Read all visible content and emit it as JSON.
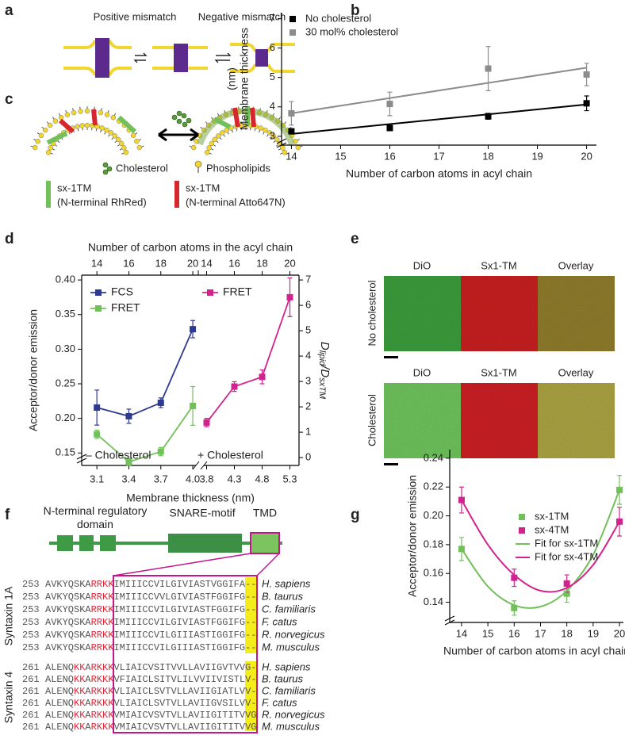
{
  "panel_letters": [
    "a",
    "b",
    "c",
    "d",
    "e",
    "f",
    "g"
  ],
  "panel_a": {
    "labels": [
      "Positive mismatch",
      "Negative mismatch"
    ]
  },
  "panel_c": {
    "legend": [
      "Cholesterol",
      "Phospholipids"
    ],
    "probes": [
      {
        "name": "sx-1TM",
        "detail": "(N-terminal RhRed)",
        "color": "#72c05a"
      },
      {
        "name": "sx-1TM",
        "detail": "(N-terminal Atto647N)",
        "color": "#d8262f"
      }
    ]
  },
  "panel_e": {
    "columns": [
      "DiO",
      "Sx1-TM",
      "Overlay"
    ],
    "column_colors": [
      "#3aa03a",
      "#d8262f",
      "#222222"
    ],
    "rows": [
      "No cholesterol",
      "Cholesterol"
    ]
  },
  "panel_f": {
    "domains": [
      "N-terminal regulatory domain",
      "SNARE-motif",
      "TMD"
    ],
    "groups": [
      {
        "name": "Syntaxin 1A",
        "rows": [
          {
            "start": 253,
            "segments": [
              {
                "text": "AVKYQSKA",
                "red": false
              },
              {
                "text": "RRKK",
                "red": true
              },
              {
                "text": "IMIIICCVILGIVIASTVGGIFA--",
                "red": false
              }
            ],
            "species": "H. sapiens"
          },
          {
            "start": 253,
            "segments": [
              {
                "text": "AVKYQSKA",
                "red": false
              },
              {
                "text": "RRKK",
                "red": true
              },
              {
                "text": "IMIIICCVVLGIVIASTFGGIFG--",
                "red": false
              }
            ],
            "species": "B. taurus"
          },
          {
            "start": 253,
            "segments": [
              {
                "text": "AVKYQSKA",
                "red": false
              },
              {
                "text": "RRKK",
                "red": true
              },
              {
                "text": "IMIIICCVILGIVIASTFGGIFG--",
                "red": false
              }
            ],
            "species": "C. familiaris"
          },
          {
            "start": 253,
            "segments": [
              {
                "text": "AVKYQSKA",
                "red": false
              },
              {
                "text": "RRKK",
                "red": true
              },
              {
                "text": "IMIIICCVILGIVIASTFGGIFG--",
                "red": false
              }
            ],
            "species": "F. catus"
          },
          {
            "start": 253,
            "segments": [
              {
                "text": "AVKYQSKA",
                "red": false
              },
              {
                "text": "RRKK",
                "red": true
              },
              {
                "text": "IMIIICCVILGIIIASTIGGIFG--",
                "red": false
              }
            ],
            "species": "R. norvegicus"
          },
          {
            "start": 253,
            "segments": [
              {
                "text": "AVKYQSKA",
                "red": false
              },
              {
                "text": "RRKK",
                "red": true
              },
              {
                "text": "IMIIICCVILGIIIASTIGGIFG--",
                "red": false
              }
            ],
            "species": "M. musculus"
          }
        ]
      },
      {
        "name": "Syntaxin 4",
        "rows": [
          {
            "start": 261,
            "segments": [
              {
                "text": "ALENQ",
                "red": false
              },
              {
                "text": "KK",
                "red": true
              },
              {
                "text": "A",
                "red": false
              },
              {
                "text": "RKKK",
                "red": true
              },
              {
                "text": "VLIAICVSITVVLLAVIIGVTVVG-",
                "red": false
              }
            ],
            "species": "H. sapiens"
          },
          {
            "start": 261,
            "segments": [
              {
                "text": "ALENQ",
                "red": false
              },
              {
                "text": "KK",
                "red": true
              },
              {
                "text": "A",
                "red": false
              },
              {
                "text": "RKKK",
                "red": true
              },
              {
                "text": "VFIAICLSITVLILVVIIVISTLV-",
                "red": false
              }
            ],
            "species": "B. taurus"
          },
          {
            "start": 261,
            "segments": [
              {
                "text": "ALENQ",
                "red": false
              },
              {
                "text": "KK",
                "red": true
              },
              {
                "text": "A",
                "red": false
              },
              {
                "text": "RKKK",
                "red": true
              },
              {
                "text": "VLIAICLSVTVLLAVIIGIATLVV-",
                "red": false
              }
            ],
            "species": "C. familiaris"
          },
          {
            "start": 261,
            "segments": [
              {
                "text": "ALENQ",
                "red": false
              },
              {
                "text": "KK",
                "red": true
              },
              {
                "text": "A",
                "red": false
              },
              {
                "text": "RKKK",
                "red": true
              },
              {
                "text": "VLIAICLSVTVLLAVIIGVSILVV-",
                "red": false
              }
            ],
            "species": "F. catus"
          },
          {
            "start": 261,
            "segments": [
              {
                "text": "ALENQ",
                "red": false
              },
              {
                "text": "KK",
                "red": true
              },
              {
                "text": "A",
                "red": false
              },
              {
                "text": "RKKK",
                "red": true
              },
              {
                "text": "VMIAICVSVTVLLAVIIGITITVVG",
                "red": false
              }
            ],
            "species": "R. norvegicus"
          },
          {
            "start": 261,
            "segments": [
              {
                "text": "ALENQ",
                "red": false
              },
              {
                "text": "KK",
                "red": true
              },
              {
                "text": "A",
                "red": false
              },
              {
                "text": "RKKK",
                "red": true
              },
              {
                "text": "VMIAICVSVTVLLAVIIGITITVVG",
                "red": false
              }
            ],
            "species": "M. musculus"
          }
        ]
      }
    ]
  },
  "chart_data": [
    {
      "type": "scatter",
      "xlabel": "Number of carbon atoms in acyl chain",
      "ylabel": [
        "Membrane thickness",
        "(nm)"
      ],
      "x": [
        14,
        16,
        18,
        20
      ],
      "xlim": [
        13.8,
        20.2
      ],
      "xticks": [
        14,
        15,
        16,
        17,
        18,
        19,
        20
      ],
      "ylim": [
        2.7,
        7.2
      ],
      "yticks": [
        3,
        4,
        5,
        6,
        7
      ],
      "y_break": true,
      "legend": "upper left",
      "series": [
        {
          "name": "No cholesterol",
          "color": "#000000",
          "values": [
            3.17,
            3.28,
            3.68,
            4.12
          ],
          "errors": [
            0.08,
            0.05,
            0.1,
            0.25
          ],
          "fit_x": [
            14,
            20
          ],
          "fit": [
            3.08,
            4.08
          ]
        },
        {
          "name": "30 mol% cholesterol",
          "color": "#8c8c8c",
          "values": [
            3.78,
            4.1,
            5.3,
            5.1
          ],
          "errors": [
            0.4,
            0.4,
            0.75,
            0.38
          ],
          "fit_x": [
            14,
            20
          ],
          "fit": [
            3.78,
            5.33
          ]
        }
      ]
    },
    {
      "type": "line",
      "title": "Number of carbon atoms in the acyl chain",
      "categories": [
        "3.1",
        "3.4",
        "3.7",
        "4.0"
      ],
      "top_categories": [
        14,
        16,
        18,
        20
      ],
      "xlabel": "Membrane thickness (nm)",
      "ylabel": "Acceptor/donor emission",
      "y2label_parts": [
        "D",
        "lipid",
        "/D",
        "sxTM"
      ],
      "ylim": [
        0.132,
        0.407
      ],
      "yticks": [
        0.15,
        {
          "value": 0.2,
          "label": "0.20"
        },
        0.25,
        {
          "value": 0.3,
          "label": "0.30"
        },
        0.35,
        {
          "value": 0.4,
          "label": "0.40"
        }
      ],
      "y2lim": [
        -0.31,
        7.19
      ],
      "y2ticks": [
        0,
        1,
        2,
        3,
        4,
        5,
        6,
        7
      ],
      "y_break": true,
      "annotation": "– Cholesterol",
      "legend": "upper left",
      "series": [
        {
          "name": "FCS",
          "color": "#2e3a8f",
          "axis": "y2",
          "values": [
            1.97,
            1.63,
            2.16,
            5.06
          ],
          "errors": [
            0.69,
            0.28,
            0.19,
            0.34
          ]
        },
        {
          "name": "FRET",
          "color": "#72c05a",
          "values": [
            0.177,
            0.137,
            0.152,
            0.218
          ],
          "errors": [
            0.006,
            0.005,
            0.006,
            0.028
          ]
        }
      ]
    },
    {
      "type": "line",
      "categories": [
        "3.8",
        "4.3",
        "4.8",
        "5.3"
      ],
      "top_categories": [
        14,
        16,
        18,
        20
      ],
      "ylim": [
        0.132,
        0.407
      ],
      "annotation": "+ Cholesterol",
      "legend": "upper left",
      "series": [
        {
          "name": "FRET",
          "color": "#d1238e",
          "values": [
            0.194,
            0.246,
            0.26,
            0.375
          ],
          "errors": [
            0.006,
            0.007,
            0.01,
            0.028
          ]
        }
      ]
    },
    {
      "type": "scatter",
      "xlabel": "Number of carbon atoms in acyl chain",
      "ylabel": "Acceptor/donor emission",
      "xlim": [
        13.55,
        20.15
      ],
      "xticks": [
        14,
        15,
        16,
        17,
        18,
        19,
        20
      ],
      "ylim": [
        0.126,
        0.246
      ],
      "yticks": [
        0.14,
        0.16,
        0.18,
        {
          "value": 0.2,
          "label": "0.20"
        },
        0.22,
        0.24
      ],
      "y_break": true,
      "legend": "center right",
      "series": [
        {
          "name": "sx-1TM",
          "color": "#72c05a",
          "marker": "square",
          "x": [
            14,
            16,
            18,
            20
          ],
          "values": [
            0.177,
            0.136,
            0.146,
            0.218
          ],
          "errors": [
            0.008,
            0.005,
            0.006,
            0.01
          ]
        },
        {
          "name": "sx-4TM",
          "color": "#d1238e",
          "marker": "square",
          "x": [
            14,
            16,
            18,
            20
          ],
          "values": [
            0.211,
            0.157,
            0.153,
            0.196
          ],
          "errors": [
            0.009,
            0.006,
            0.006,
            0.01
          ]
        },
        {
          "name": "Fit for sx-1TM",
          "color": "#72c05a",
          "marker": "line",
          "x": [
            14,
            15,
            16,
            17,
            18,
            19,
            20
          ],
          "values": [
            0.177,
            0.151,
            0.138,
            0.137,
            0.148,
            0.173,
            0.218
          ]
        },
        {
          "name": "Fit for sx-4TM",
          "color": "#d1238e",
          "marker": "line",
          "x": [
            14,
            15,
            16,
            17,
            18,
            19,
            20
          ],
          "values": [
            0.211,
            0.18,
            0.159,
            0.148,
            0.15,
            0.166,
            0.196
          ]
        }
      ]
    }
  ]
}
